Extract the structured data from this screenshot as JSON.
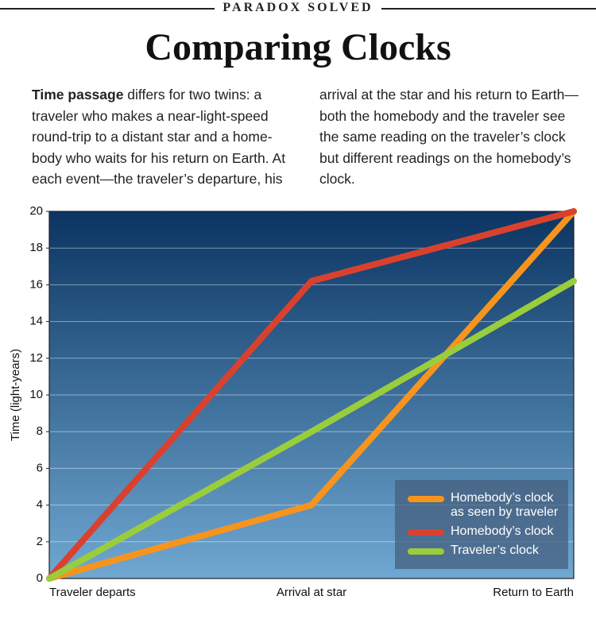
{
  "header": {
    "kicker": "PARADOX SOLVED",
    "title": "Comparing Clocks",
    "intro_lead": "Time passage",
    "intro_text": " differs for two twins: a traveler who makes a near-light-speed round-trip to a distant star and a home-body who waits for his return on Earth. At each event—the traveler’s departure, his arrival at the star and his return to Earth—both the homebody and the traveler see the same reading on the traveler’s clock but different readings on the homebody’s clock."
  },
  "chart_data": {
    "type": "line",
    "y_label": "Time (light-years)",
    "categories": [
      "Traveler departs",
      "Arrival at star",
      "Return to Earth"
    ],
    "series": [
      {
        "name": "Homebody’s clock as seen by traveler",
        "color": "#f7941d",
        "values": [
          0,
          4,
          20
        ]
      },
      {
        "name": "Homebody’s clock",
        "color": "#d9412e",
        "values": [
          0,
          16.2,
          20
        ]
      },
      {
        "name": "Traveler’s clock",
        "color": "#9acd3c",
        "values": [
          0,
          8,
          16.2
        ]
      }
    ],
    "ylim": [
      0,
      20
    ],
    "yticks": [
      0,
      2,
      4,
      6,
      8,
      10,
      12,
      14,
      16,
      18,
      20
    ],
    "grid": true,
    "legend": "lower right"
  }
}
